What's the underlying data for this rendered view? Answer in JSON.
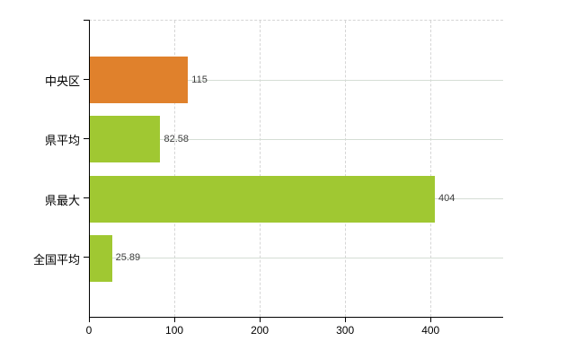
{
  "chart_data": {
    "type": "bar",
    "orientation": "horizontal",
    "categories": [
      "中央区",
      "県平均",
      "県最大",
      "全国平均"
    ],
    "values": [
      115,
      82.58,
      404,
      25.89
    ],
    "value_labels": [
      "115",
      "82.58",
      "404",
      "25.89"
    ],
    "bar_colors": [
      "#e0812c",
      "#a0c832",
      "#a0c832",
      "#a0c832"
    ],
    "xlim": [
      0,
      485
    ],
    "xticks": [
      0,
      100,
      200,
      300,
      400
    ],
    "xtick_labels": [
      "0",
      "100",
      "200",
      "300",
      "400"
    ],
    "xlabel": "",
    "ylabel": "",
    "legend_position": "none",
    "grid": {
      "horizontal": "solid",
      "vertical": "dashed",
      "plot_top_border": "dashed"
    },
    "colors": {
      "background": "#ffffff",
      "axis": "#000000",
      "grid_horizontal": "#d5ddd5",
      "grid_vertical": "#d6d6d6",
      "value_label": "#3d3d3d",
      "category_label": "#000000",
      "tick_label": "#000000",
      "orange_series": "#e0812c",
      "green_series": "#a0c832"
    }
  }
}
